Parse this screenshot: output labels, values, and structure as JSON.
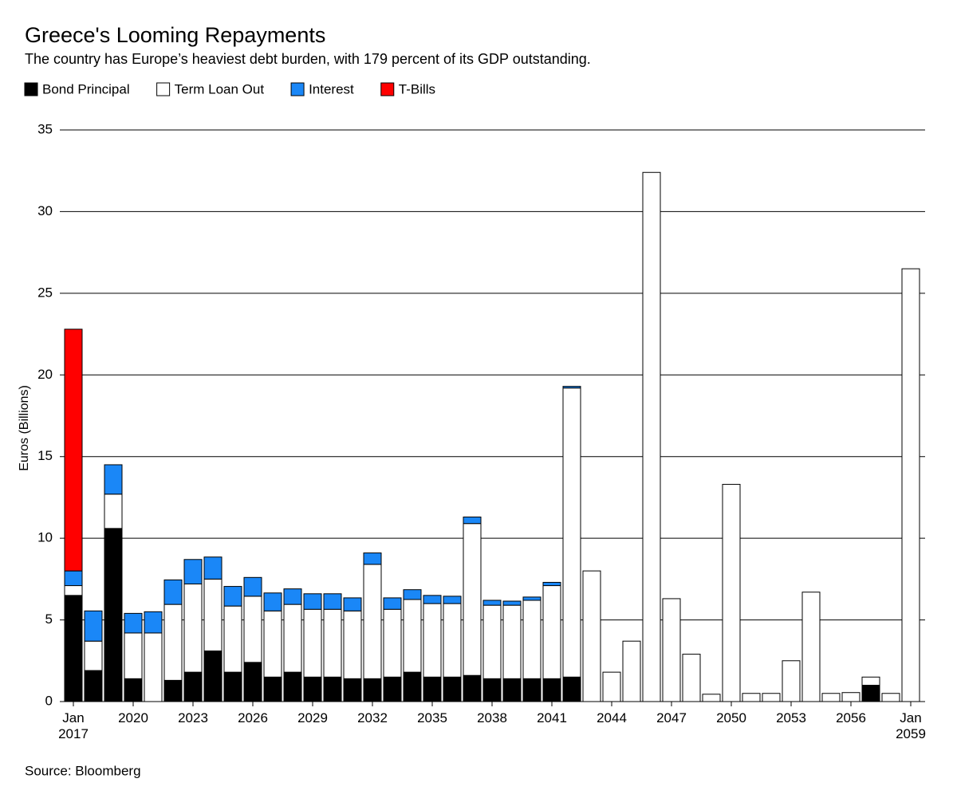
{
  "chart_data": {
    "type": "stacked_bar",
    "title": "Greece's Looming Repayments",
    "subtitle": "The country has Europe’s heaviest debt burden, with 179 percent of its GDP outstanding.",
    "y_label": "Euros (Billions)",
    "source": "Source: Bloomberg",
    "categories": [
      "Jan\n2017",
      null,
      null,
      "2020",
      null,
      null,
      "2023",
      null,
      null,
      "2026",
      null,
      null,
      "2029",
      null,
      null,
      "2032",
      null,
      null,
      "2035",
      null,
      null,
      "2038",
      null,
      null,
      "2041",
      null,
      null,
      "2044",
      null,
      null,
      "2047",
      null,
      null,
      "2050",
      null,
      null,
      "2053",
      null,
      null,
      "2056",
      null,
      null,
      "Jan\n2059"
    ],
    "series": [
      {
        "name": "Bond Principal",
        "color": "#000000",
        "values": [
          6.5,
          1.9,
          10.6,
          1.4,
          0,
          1.3,
          1.8,
          3.1,
          1.8,
          2.4,
          1.5,
          1.8,
          1.5,
          1.5,
          1.4,
          1.4,
          1.5,
          1.8,
          1.5,
          1.5,
          1.6,
          1.4,
          1.4,
          1.4,
          1.4,
          1.5,
          0,
          0,
          0,
          0,
          0,
          0,
          0,
          0,
          0,
          0,
          0,
          0,
          0,
          0,
          1.0,
          0,
          0
        ]
      },
      {
        "name": "Term Loan Out",
        "color": "#ffffff",
        "values": [
          0.6,
          1.8,
          2.1,
          2.8,
          4.2,
          4.65,
          5.4,
          4.4,
          4.05,
          4.05,
          4.05,
          4.15,
          4.15,
          4.15,
          4.15,
          7.0,
          4.15,
          4.45,
          4.5,
          4.5,
          9.3,
          4.5,
          4.5,
          4.8,
          5.7,
          17.7,
          8.0,
          1.8,
          3.7,
          32.4,
          6.3,
          2.9,
          0.45,
          13.3,
          0.5,
          0.5,
          2.5,
          6.7,
          0.5,
          0.55,
          0.5,
          0.5,
          26.5
        ]
      },
      {
        "name": "Interest",
        "color": "#1a87f7",
        "values": [
          0.9,
          1.85,
          1.8,
          1.2,
          1.3,
          1.5,
          1.5,
          1.35,
          1.2,
          1.15,
          1.1,
          0.95,
          0.95,
          0.95,
          0.8,
          0.7,
          0.7,
          0.6,
          0.5,
          0.45,
          0.4,
          0.3,
          0.25,
          0.2,
          0.2,
          0.1,
          0,
          0,
          0,
          0,
          0,
          0,
          0,
          0,
          0,
          0,
          0,
          0,
          0,
          0,
          0,
          0,
          0
        ]
      },
      {
        "name": "T-Bills",
        "color": "#ff0000",
        "values": [
          14.8,
          0,
          0,
          0,
          0,
          0,
          0,
          0,
          0,
          0,
          0,
          0,
          0,
          0,
          0,
          0,
          0,
          0,
          0,
          0,
          0,
          0,
          0,
          0,
          0,
          0,
          0,
          0,
          0,
          0,
          0,
          0,
          0,
          0,
          0,
          0,
          0,
          0,
          0,
          0,
          0,
          0,
          0
        ]
      }
    ],
    "ylim": [
      0,
      35
    ],
    "yticks": [
      0,
      5,
      10,
      15,
      20,
      25,
      30,
      35
    ],
    "grid": true
  }
}
